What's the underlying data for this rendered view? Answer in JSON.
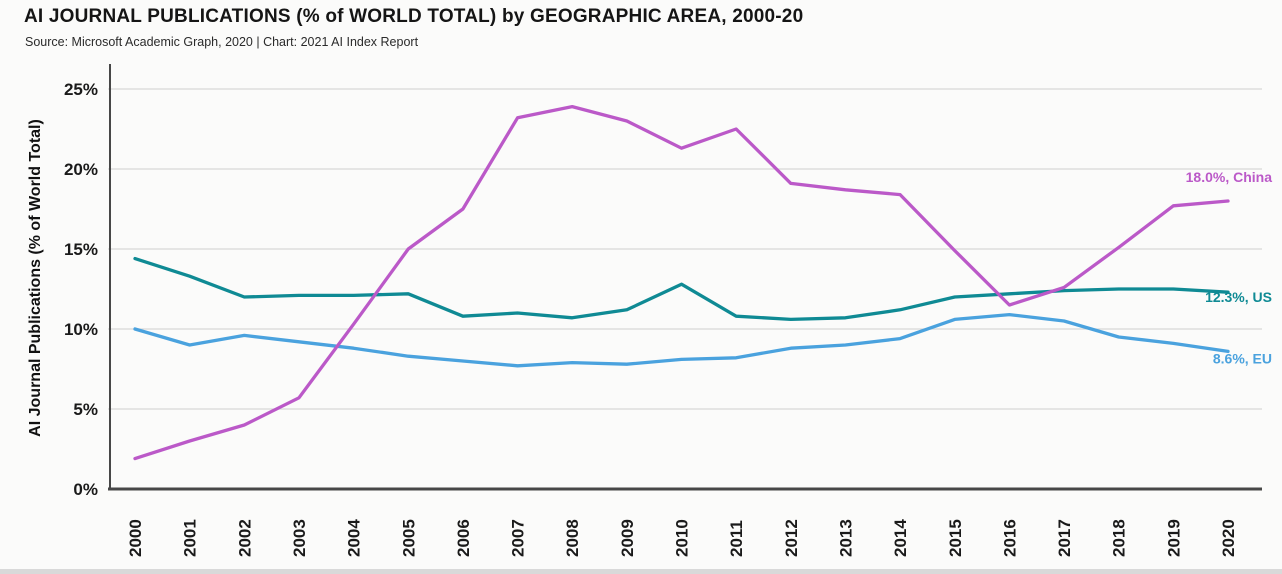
{
  "colors": {
    "axis": "#474747",
    "grid": "#d8d8d8",
    "text": "#1a1a1a",
    "background": "#fbfbfa",
    "china": "#bb59c8",
    "us": "#0f8a94",
    "eu": "#4aa2de"
  },
  "chart_data": {
    "type": "line",
    "title": "AI JOURNAL PUBLICATIONS (% of WORLD TOTAL) by GEOGRAPHIC AREA, 2000-20",
    "subtitle": "Source: Microsoft Academic Graph, 2020 | Chart: 2021 AI Index Report",
    "xlabel": "",
    "ylabel": "AI Journal Publications (% of World Total)",
    "x": [
      2000,
      2001,
      2002,
      2003,
      2004,
      2005,
      2006,
      2007,
      2008,
      2009,
      2010,
      2011,
      2012,
      2013,
      2014,
      2015,
      2016,
      2017,
      2018,
      2019,
      2020
    ],
    "ylim": [
      0,
      25
    ],
    "yticks": [
      0,
      5,
      10,
      15,
      20,
      25
    ],
    "ytick_labels": [
      "0%",
      "5%",
      "10%",
      "15%",
      "20%",
      "25%"
    ],
    "grid": true,
    "legend_position": "end-of-line-labels",
    "series": [
      {
        "name": "China",
        "color": "#bb59c8",
        "end_label": "18.0%, China",
        "end_label_dy": -19,
        "values": [
          1.9,
          3.0,
          4.0,
          5.7,
          10.3,
          15.0,
          17.5,
          23.2,
          23.9,
          23.0,
          21.3,
          22.5,
          19.1,
          18.7,
          18.4,
          14.9,
          11.5,
          12.6,
          15.1,
          17.7,
          18.0
        ]
      },
      {
        "name": "US",
        "color": "#0f8a94",
        "end_label": "12.3%, US",
        "end_label_dy": 10,
        "values": [
          14.4,
          13.3,
          12.0,
          12.1,
          12.1,
          12.2,
          10.8,
          11.0,
          10.7,
          11.2,
          12.8,
          10.8,
          10.6,
          10.7,
          11.2,
          12.0,
          12.2,
          12.4,
          12.5,
          12.5,
          12.3
        ]
      },
      {
        "name": "EU",
        "color": "#4aa2de",
        "end_label": "8.6%, EU",
        "end_label_dy": 12,
        "values": [
          10.0,
          9.0,
          9.6,
          9.2,
          8.8,
          8.3,
          8.0,
          7.7,
          7.9,
          7.8,
          8.1,
          8.2,
          8.8,
          9.0,
          9.4,
          10.6,
          10.9,
          10.5,
          9.5,
          9.1,
          8.6
        ]
      }
    ]
  }
}
